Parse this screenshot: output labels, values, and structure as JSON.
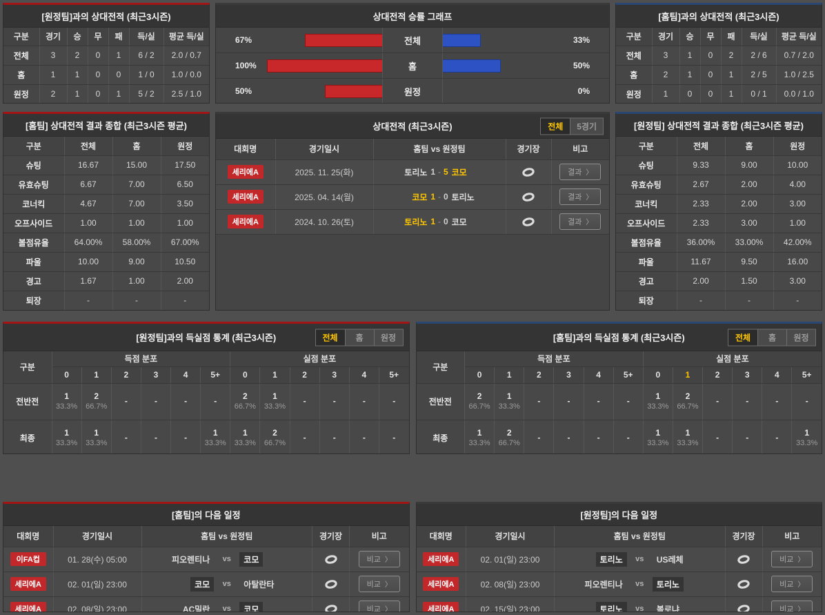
{
  "ui": {
    "arrow": "〉",
    "vs": "vs",
    "score_sep": "-",
    "result_btn": "결과",
    "compare_btn": "비교"
  },
  "colors": {
    "red_accent": "#a31515",
    "blue_accent": "#2a4672",
    "bar_red": "#c8282a",
    "bar_blue": "#2c52c4",
    "highlight": "#ffc600"
  },
  "record_away": {
    "title": "[원정팀]과의 상대전적 (최근3시즌)",
    "headers": [
      "구분",
      "경기",
      "승",
      "무",
      "패",
      "득/실",
      "평균 득/실"
    ],
    "rows": [
      [
        "전체",
        "3",
        "2",
        "0",
        "1",
        "6 / 2",
        "2.0 / 0.7"
      ],
      [
        "홈",
        "1",
        "1",
        "0",
        "0",
        "1 / 0",
        "1.0 / 0.0"
      ],
      [
        "원정",
        "2",
        "1",
        "0",
        "1",
        "5 / 2",
        "2.5 / 1.0"
      ]
    ]
  },
  "graph": {
    "title": "상대전적 승률 그래프",
    "rows": [
      {
        "label": "전체",
        "left_pct": "67%",
        "left_val": 67,
        "right_pct": "33%",
        "right_val": 33
      },
      {
        "label": "홈",
        "left_pct": "100%",
        "left_val": 100,
        "right_pct": "50%",
        "right_val": 50
      },
      {
        "label": "원정",
        "left_pct": "50%",
        "left_val": 50,
        "right_pct": "0%",
        "right_val": 0
      }
    ]
  },
  "record_home": {
    "title": "[홈팀]과의 상대전적 (최근3시즌)",
    "headers": [
      "구분",
      "경기",
      "승",
      "무",
      "패",
      "득/실",
      "평균 득/실"
    ],
    "rows": [
      [
        "전체",
        "3",
        "1",
        "0",
        "2",
        "2 / 6",
        "0.7 / 2.0"
      ],
      [
        "홈",
        "2",
        "1",
        "0",
        "1",
        "2 / 5",
        "1.0 / 2.5"
      ],
      [
        "원정",
        "1",
        "0",
        "0",
        "1",
        "0 / 1",
        "0.0 / 1.0"
      ]
    ]
  },
  "summary_home": {
    "title": "[홈팀] 상대전적 결과 종합 (최근3시즌 평균)",
    "headers": [
      "구분",
      "전체",
      "홈",
      "원정"
    ],
    "rows": [
      [
        "슈팅",
        "16.67",
        "15.00",
        "17.50"
      ],
      [
        "유효슈팅",
        "6.67",
        "7.00",
        "6.50"
      ],
      [
        "코너킥",
        "4.67",
        "7.00",
        "3.50"
      ],
      [
        "오프사이드",
        "1.00",
        "1.00",
        "1.00"
      ],
      [
        "볼점유율",
        "64.00%",
        "58.00%",
        "67.00%"
      ],
      [
        "파울",
        "10.00",
        "9.00",
        "10.50"
      ],
      [
        "경고",
        "1.67",
        "1.00",
        "2.00"
      ],
      [
        "퇴장",
        "-",
        "-",
        "-"
      ]
    ]
  },
  "summary_away": {
    "title": "[원정팀] 상대전적 결과 종합 (최근3시즌 평균)",
    "headers": [
      "구분",
      "전체",
      "홈",
      "원정"
    ],
    "rows": [
      [
        "슈팅",
        "9.33",
        "9.00",
        "10.00"
      ],
      [
        "유효슈팅",
        "2.67",
        "2.00",
        "4.00"
      ],
      [
        "코너킥",
        "2.33",
        "2.00",
        "3.00"
      ],
      [
        "오프사이드",
        "2.33",
        "3.00",
        "1.00"
      ],
      [
        "볼점유율",
        "36.00%",
        "33.00%",
        "42.00%"
      ],
      [
        "파울",
        "11.67",
        "9.50",
        "16.00"
      ],
      [
        "경고",
        "2.00",
        "1.50",
        "3.00"
      ],
      [
        "퇴장",
        "-",
        "-",
        "-"
      ]
    ]
  },
  "h2h": {
    "title": "상대전적 (최근3시즌)",
    "tabs": [
      {
        "label": "전체",
        "active": "true"
      },
      {
        "label": "5경기",
        "active": "false"
      }
    ],
    "headers": {
      "league": "대회명",
      "date": "경기일시",
      "teams": "홈팀 vs 원정팀",
      "stadium": "경기장",
      "note": "비고"
    },
    "rows": [
      {
        "league": "세리에A",
        "date": "2025. 11. 25(화)",
        "home": "토리노",
        "home_win": "false",
        "hs": "1",
        "as": "5",
        "away": "코모",
        "away_win": "true"
      },
      {
        "league": "세리에A",
        "date": "2025. 04. 14(월)",
        "home": "코모",
        "home_win": "true",
        "hs": "1",
        "as": "0",
        "away": "토리노",
        "away_win": "false"
      },
      {
        "league": "세리에A",
        "date": "2024. 10. 26(토)",
        "home": "토리노",
        "home_win": "true",
        "hs": "1",
        "as": "0",
        "away": "코모",
        "away_win": "false"
      }
    ]
  },
  "goal_left": {
    "title": "[원정팀]과의 득실점 통계 (최근3시즌)",
    "tabs": [
      {
        "label": "전체",
        "active": "true"
      },
      {
        "label": "홈",
        "active": "false"
      },
      {
        "label": "원정",
        "active": "false"
      }
    ],
    "headers": {
      "cat": "구분",
      "score_group": "득점 분포",
      "conceded_group": "실점 분포"
    },
    "score_cols": [
      {
        "t": "0",
        "hl": "false"
      },
      {
        "t": "1",
        "hl": "false"
      },
      {
        "t": "2",
        "hl": "false"
      },
      {
        "t": "3",
        "hl": "false"
      },
      {
        "t": "4",
        "hl": "false"
      },
      {
        "t": "5+",
        "hl": "false"
      }
    ],
    "conceded_cols": [
      {
        "t": "0",
        "hl": "false"
      },
      {
        "t": "1",
        "hl": "false"
      },
      {
        "t": "2",
        "hl": "false"
      },
      {
        "t": "3",
        "hl": "false"
      },
      {
        "t": "4",
        "hl": "false"
      },
      {
        "t": "5+",
        "hl": "false"
      }
    ],
    "rows": [
      {
        "label": "전반전",
        "score": [
          {
            "n": "1",
            "p": "33.3%"
          },
          {
            "n": "2",
            "p": "66.7%"
          },
          {
            "n": "-",
            "p": ""
          },
          {
            "n": "-",
            "p": ""
          },
          {
            "n": "-",
            "p": ""
          },
          {
            "n": "-",
            "p": ""
          }
        ],
        "conceded": [
          {
            "n": "2",
            "p": "66.7%"
          },
          {
            "n": "1",
            "p": "33.3%"
          },
          {
            "n": "-",
            "p": ""
          },
          {
            "n": "-",
            "p": ""
          },
          {
            "n": "-",
            "p": ""
          },
          {
            "n": "-",
            "p": ""
          }
        ]
      },
      {
        "label": "최종",
        "score": [
          {
            "n": "1",
            "p": "33.3%"
          },
          {
            "n": "1",
            "p": "33.3%"
          },
          {
            "n": "-",
            "p": ""
          },
          {
            "n": "-",
            "p": ""
          },
          {
            "n": "-",
            "p": ""
          },
          {
            "n": "1",
            "p": "33.3%"
          }
        ],
        "conceded": [
          {
            "n": "1",
            "p": "33.3%"
          },
          {
            "n": "2",
            "p": "66.7%"
          },
          {
            "n": "-",
            "p": ""
          },
          {
            "n": "-",
            "p": ""
          },
          {
            "n": "-",
            "p": ""
          },
          {
            "n": "-",
            "p": ""
          }
        ]
      }
    ]
  },
  "goal_right": {
    "title": "[홈팀]과의 득실점 통계 (최근3시즌)",
    "tabs": [
      {
        "label": "전체",
        "active": "true"
      },
      {
        "label": "홈",
        "active": "false"
      },
      {
        "label": "원정",
        "active": "false"
      }
    ],
    "headers": {
      "cat": "구분",
      "score_group": "득점 분포",
      "conceded_group": "실점 분포"
    },
    "score_cols": [
      {
        "t": "0",
        "hl": "false"
      },
      {
        "t": "1",
        "hl": "false"
      },
      {
        "t": "2",
        "hl": "false"
      },
      {
        "t": "3",
        "hl": "false"
      },
      {
        "t": "4",
        "hl": "false"
      },
      {
        "t": "5+",
        "hl": "false"
      }
    ],
    "conceded_cols": [
      {
        "t": "0",
        "hl": "false"
      },
      {
        "t": "1",
        "hl": "true"
      },
      {
        "t": "2",
        "hl": "false"
      },
      {
        "t": "3",
        "hl": "false"
      },
      {
        "t": "4",
        "hl": "false"
      },
      {
        "t": "5+",
        "hl": "false"
      }
    ],
    "rows": [
      {
        "label": "전반전",
        "score": [
          {
            "n": "2",
            "p": "66.7%"
          },
          {
            "n": "1",
            "p": "33.3%"
          },
          {
            "n": "-",
            "p": ""
          },
          {
            "n": "-",
            "p": ""
          },
          {
            "n": "-",
            "p": ""
          },
          {
            "n": "-",
            "p": ""
          }
        ],
        "conceded": [
          {
            "n": "1",
            "p": "33.3%"
          },
          {
            "n": "2",
            "p": "66.7%"
          },
          {
            "n": "-",
            "p": ""
          },
          {
            "n": "-",
            "p": ""
          },
          {
            "n": "-",
            "p": ""
          },
          {
            "n": "-",
            "p": ""
          }
        ]
      },
      {
        "label": "최종",
        "score": [
          {
            "n": "1",
            "p": "33.3%"
          },
          {
            "n": "2",
            "p": "66.7%"
          },
          {
            "n": "-",
            "p": ""
          },
          {
            "n": "-",
            "p": ""
          },
          {
            "n": "-",
            "p": ""
          },
          {
            "n": "-",
            "p": ""
          }
        ],
        "conceded": [
          {
            "n": "1",
            "p": "33.3%"
          },
          {
            "n": "1",
            "p": "33.3%"
          },
          {
            "n": "-",
            "p": ""
          },
          {
            "n": "-",
            "p": ""
          },
          {
            "n": "-",
            "p": ""
          },
          {
            "n": "1",
            "p": "33.3%"
          }
        ]
      }
    ]
  },
  "sched_home": {
    "title": "[홈팀]의 다음 일정",
    "headers": {
      "league": "대회명",
      "date": "경기일시",
      "teams": "홈팀 vs 원정팀",
      "stadium": "경기장",
      "note": "비고"
    },
    "rows": [
      {
        "league": "이FA컵",
        "date": "01. 28(수) 05:00",
        "home": "피오렌티나",
        "home_hl": "false",
        "away": "코모",
        "away_hl": "true"
      },
      {
        "league": "세리에A",
        "date": "02. 01(일) 23:00",
        "home": "코모",
        "home_hl": "true",
        "away": "아탈란타",
        "away_hl": "false"
      },
      {
        "league": "세리에A",
        "date": "02. 08(일) 23:00",
        "home": "AC밀란",
        "home_hl": "false",
        "away": "코모",
        "away_hl": "true"
      }
    ]
  },
  "sched_away": {
    "title": "[원정팀]의 다음 일정",
    "headers": {
      "league": "대회명",
      "date": "경기일시",
      "teams": "홈팀 vs 원정팀",
      "stadium": "경기장",
      "note": "비고"
    },
    "rows": [
      {
        "league": "세리에A",
        "date": "02. 01(일) 23:00",
        "home": "토리노",
        "home_hl": "true",
        "away": "US레체",
        "away_hl": "false"
      },
      {
        "league": "세리에A",
        "date": "02. 08(일) 23:00",
        "home": "피오렌티나",
        "home_hl": "false",
        "away": "토리노",
        "away_hl": "true"
      },
      {
        "league": "세리에A",
        "date": "02. 15(일) 23:00",
        "home": "토리노",
        "home_hl": "true",
        "away": "볼로냐",
        "away_hl": "false"
      }
    ]
  }
}
